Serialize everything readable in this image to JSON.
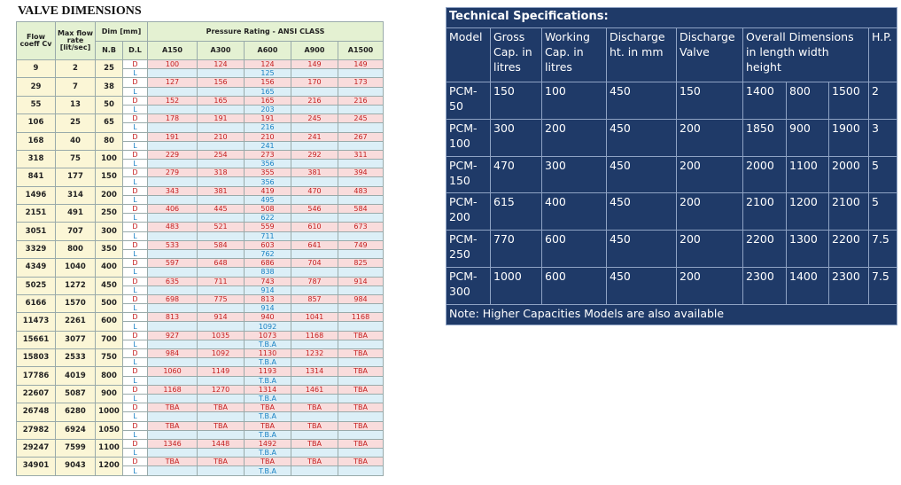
{
  "valve": {
    "title": "VALVE DIMENSIONS",
    "headers": {
      "cv": "Flow coeff Cv",
      "flow": "Max flow rate [lit/sec]",
      "dim": "Dim [mm]",
      "pressure": "Pressure Rating - ANSI CLASS",
      "nb": "N.B",
      "dl": "D.L",
      "classes": [
        "A150",
        "A300",
        "A600",
        "A900",
        "A1500"
      ]
    },
    "dl_labels": [
      "D",
      "L"
    ],
    "rows": [
      {
        "cv": "9",
        "flow": "2",
        "nb": "25",
        "d": [
          "100",
          "124",
          "124",
          "149",
          "149"
        ],
        "l": "125"
      },
      {
        "cv": "29",
        "flow": "7",
        "nb": "38",
        "d": [
          "127",
          "156",
          "156",
          "170",
          "173"
        ],
        "l": "165"
      },
      {
        "cv": "55",
        "flow": "13",
        "nb": "50",
        "d": [
          "152",
          "165",
          "165",
          "216",
          "216"
        ],
        "l": "203"
      },
      {
        "cv": "106",
        "flow": "25",
        "nb": "65",
        "d": [
          "178",
          "191",
          "191",
          "245",
          "245"
        ],
        "l": "216"
      },
      {
        "cv": "168",
        "flow": "40",
        "nb": "80",
        "d": [
          "191",
          "210",
          "210",
          "241",
          "267"
        ],
        "l": "241"
      },
      {
        "cv": "318",
        "flow": "75",
        "nb": "100",
        "d": [
          "229",
          "254",
          "273",
          "292",
          "311"
        ],
        "l": "356"
      },
      {
        "cv": "841",
        "flow": "177",
        "nb": "150",
        "d": [
          "279",
          "318",
          "355",
          "381",
          "394"
        ],
        "l": "356"
      },
      {
        "cv": "1496",
        "flow": "314",
        "nb": "200",
        "d": [
          "343",
          "381",
          "419",
          "470",
          "483"
        ],
        "l": "495"
      },
      {
        "cv": "2151",
        "flow": "491",
        "nb": "250",
        "d": [
          "406",
          "445",
          "508",
          "546",
          "584"
        ],
        "l": "622"
      },
      {
        "cv": "3051",
        "flow": "707",
        "nb": "300",
        "d": [
          "483",
          "521",
          "559",
          "610",
          "673"
        ],
        "l": "711"
      },
      {
        "cv": "3329",
        "flow": "800",
        "nb": "350",
        "d": [
          "533",
          "584",
          "603",
          "641",
          "749"
        ],
        "l": "762"
      },
      {
        "cv": "4349",
        "flow": "1040",
        "nb": "400",
        "d": [
          "597",
          "648",
          "686",
          "704",
          "825"
        ],
        "l": "838"
      },
      {
        "cv": "5025",
        "flow": "1272",
        "nb": "450",
        "d": [
          "635",
          "711",
          "743",
          "787",
          "914"
        ],
        "l": "914"
      },
      {
        "cv": "6166",
        "flow": "1570",
        "nb": "500",
        "d": [
          "698",
          "775",
          "813",
          "857",
          "984"
        ],
        "l": "914"
      },
      {
        "cv": "11473",
        "flow": "2261",
        "nb": "600",
        "d": [
          "813",
          "914",
          "940",
          "1041",
          "1168"
        ],
        "l": "1092"
      },
      {
        "cv": "15661",
        "flow": "3077",
        "nb": "700",
        "d": [
          "927",
          "1035",
          "1073",
          "1168",
          "TBA"
        ],
        "l": "T.B.A"
      },
      {
        "cv": "15803",
        "flow": "2533",
        "nb": "750",
        "d": [
          "984",
          "1092",
          "1130",
          "1232",
          "TBA"
        ],
        "l": "T.B.A"
      },
      {
        "cv": "17786",
        "flow": "4019",
        "nb": "800",
        "d": [
          "1060",
          "1149",
          "1193",
          "1314",
          "TBA"
        ],
        "l": "T.B.A"
      },
      {
        "cv": "22607",
        "flow": "5087",
        "nb": "900",
        "d": [
          "1168",
          "1270",
          "1314",
          "1461",
          "TBA"
        ],
        "l": "T.B.A"
      },
      {
        "cv": "26748",
        "flow": "6280",
        "nb": "1000",
        "d": [
          "TBA",
          "TBA",
          "TBA",
          "TBA",
          "TBA"
        ],
        "l": "T.B.A"
      },
      {
        "cv": "27982",
        "flow": "6924",
        "nb": "1050",
        "d": [
          "TBA",
          "TBA",
          "TBA",
          "TBA",
          "TBA"
        ],
        "l": "T.B.A"
      },
      {
        "cv": "29247",
        "flow": "7599",
        "nb": "1100",
        "d": [
          "1346",
          "1448",
          "1492",
          "TBA",
          "TBA"
        ],
        "l": "T.B.A"
      },
      {
        "cv": "34901",
        "flow": "9043",
        "nb": "1200",
        "d": [
          "TBA",
          "TBA",
          "TBA",
          "TBA",
          "TBA"
        ],
        "l": "T.B.A"
      }
    ]
  },
  "specs": {
    "title": "Technical Specifications:",
    "headers": [
      "Model",
      "Gross Cap. in litres",
      "Working Cap. in litres",
      "Discharge ht. in mm",
      "Discharge Valve",
      "Overall Dimensions in length width height",
      "H.P."
    ],
    "rows": [
      [
        "PCM-50",
        "150",
        "100",
        "450",
        "150",
        "1400",
        "800",
        "1500",
        "2"
      ],
      [
        "PCM-100",
        "300",
        "200",
        "450",
        "200",
        "1850",
        "900",
        "1900",
        "3"
      ],
      [
        "PCM-150",
        "470",
        "300",
        "450",
        "200",
        "2000",
        "1100",
        "2000",
        "5"
      ],
      [
        "PCM-200",
        "615",
        "400",
        "450",
        "200",
        "2100",
        "1200",
        "2100",
        "5"
      ],
      [
        "PCM-250",
        "770",
        "600",
        "450",
        "200",
        "2200",
        "1300",
        "2200",
        "7.5"
      ],
      [
        "PCM-300",
        "1000",
        "600",
        "450",
        "200",
        "2300",
        "1400",
        "2300",
        "7.5"
      ]
    ],
    "note": "Note: Higher Capacities Models are also available"
  }
}
